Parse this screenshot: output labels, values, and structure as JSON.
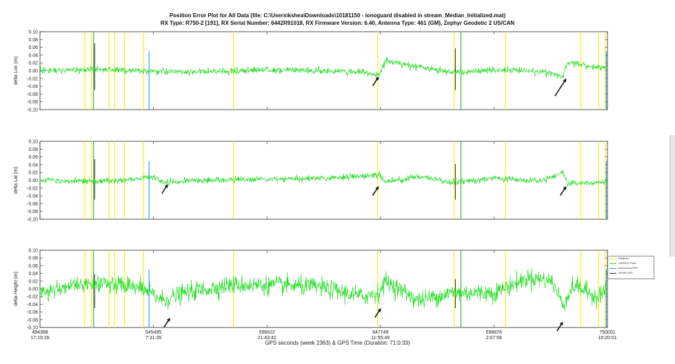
{
  "figure": {
    "title_line1": "Position Error Plot for All Data (file: C:\\Users\\kshea\\Downloads\\10181150 - ionoguard disabled in stream_Median_Initialized.mat)",
    "title_line2": "RX Type: R750-2 [191], RX Serial Number: 6442R91018, RX Firmware Version: 6.40, Antenna Type: 461 (GM), Zephyr Geodetic 2 US/CAN",
    "xlabel": "GPS seconds (week 2363) & GPS Time (Duration: 71:0:33)"
  },
  "legend": {
    "entries": [
      {
        "label": "Initialized",
        "color": "#e8e800"
      },
      {
        "label": "CMR/RTK Fixed",
        "color": "#22cc22"
      },
      {
        "label": "Autonomous/SPS",
        "color": "#1e90ff"
      },
      {
        "label": "DGNSS (SP)",
        "color": "#333333"
      }
    ]
  },
  "chart_data": [
    {
      "type": "line",
      "ylabel": "delta Lon (m)",
      "ylim": [
        -0.1,
        0.1
      ],
      "yticks": [
        "0.10",
        "0.08",
        "0.06",
        "0.04",
        "0.02",
        "0.00",
        "-0.02",
        "-0.04",
        "-0.06",
        "-0.08",
        "-0.10"
      ],
      "xlim": [
        494368,
        750001
      ],
      "xticks": [
        {
          "value": 494368,
          "gps": "494368",
          "time": "17:19:28"
        },
        {
          "value": 545495,
          "gps": "545495",
          "time": "7:31:35"
        },
        {
          "value": 596622,
          "gps": "596622",
          "time": "21:43:42"
        },
        {
          "value": 647749,
          "gps": "647749",
          "time": "11:55:49"
        },
        {
          "value": 698876,
          "gps": "698876",
          "time": "2:07:56"
        },
        {
          "value": 750001,
          "gps": "750001",
          "time": "16:20:01"
        }
      ],
      "series": [
        {
          "color": "#22dd22",
          "noise": 0.004,
          "x": [
            494368,
            520000,
            545495,
            570000,
            596622,
            620000,
            640000,
            647000,
            650000,
            665000,
            680000,
            698876,
            720000,
            730000,
            732000,
            745000,
            750001
          ],
          "y": [
            0.0,
            0.003,
            -0.002,
            -0.004,
            0.002,
            0.0,
            -0.003,
            -0.012,
            0.025,
            0.01,
            -0.005,
            0.002,
            -0.002,
            -0.015,
            0.022,
            0.008,
            0.01
          ]
        }
      ],
      "annotations": [
        {
          "label": "arrow",
          "x": 647000,
          "y": -0.015
        },
        {
          "label": "arrow",
          "x": 731500,
          "y": -0.02
        }
      ]
    },
    {
      "type": "line",
      "ylabel": "delta Lat (m)",
      "ylim": [
        -0.1,
        0.1
      ],
      "yticks": [
        "0.10",
        "0.08",
        "0.06",
        "0.04",
        "0.02",
        "0.00",
        "-0.02",
        "-0.04",
        "-0.06",
        "-0.08",
        "-0.10"
      ],
      "xlim": [
        494368,
        750001
      ],
      "xticks": [
        {
          "value": 494368,
          "gps": "494368",
          "time": "17:19:28"
        },
        {
          "value": 545495,
          "gps": "545495",
          "time": "7:31:35"
        },
        {
          "value": 596622,
          "gps": "596622",
          "time": "21:43:42"
        },
        {
          "value": 647749,
          "gps": "647749",
          "time": "11:55:49"
        },
        {
          "value": 698876,
          "gps": "698876",
          "time": "2:07:56"
        },
        {
          "value": 750001,
          "gps": "750001",
          "time": "16:20:01"
        }
      ],
      "series": [
        {
          "color": "#22dd22",
          "noise": 0.004,
          "x": [
            494368,
            520000,
            540000,
            545495,
            550000,
            570000,
            596622,
            620000,
            640000,
            647000,
            650000,
            665000,
            680000,
            698876,
            720000,
            730000,
            732000,
            745000,
            750001
          ],
          "y": [
            0.0,
            -0.003,
            0.005,
            0.01,
            -0.005,
            0.0,
            0.003,
            0.005,
            0.01,
            0.015,
            -0.005,
            0.01,
            -0.005,
            0.005,
            0.0,
            0.02,
            -0.008,
            -0.005,
            -0.003
          ]
        }
      ],
      "annotations": [
        {
          "label": "arrow",
          "x": 552000,
          "y": -0.01
        },
        {
          "label": "arrow",
          "x": 647000,
          "y": -0.015
        },
        {
          "label": "arrow",
          "x": 731500,
          "y": -0.015
        }
      ]
    },
    {
      "type": "line",
      "ylabel": "delta Height (m)",
      "ylim": [
        -0.1,
        0.1
      ],
      "yticks": [
        "0.10",
        "0.08",
        "0.06",
        "0.04",
        "0.02",
        "0.00",
        "-0.02",
        "-0.04",
        "-0.06",
        "-0.08",
        "-0.10"
      ],
      "xlim": [
        494368,
        750001
      ],
      "xticks": [
        {
          "value": 494368,
          "gps": "494368",
          "time": "17:19:28"
        },
        {
          "value": 545495,
          "gps": "545495",
          "time": "7:31:35"
        },
        {
          "value": 596622,
          "gps": "596622",
          "time": "21:43:42"
        },
        {
          "value": 647749,
          "gps": "647749",
          "time": "11:55:49"
        },
        {
          "value": 698876,
          "gps": "698876",
          "time": "2:07:56"
        },
        {
          "value": 750001,
          "gps": "750001",
          "time": "16:20:01"
        }
      ],
      "series": [
        {
          "color": "#22dd22",
          "noise": 0.012,
          "x": [
            494368,
            510000,
            525000,
            540000,
            550000,
            560000,
            580000,
            600000,
            620000,
            640000,
            647000,
            650000,
            665000,
            680000,
            698876,
            715000,
            725000,
            730000,
            735000,
            745000,
            750001
          ],
          "y": [
            -0.01,
            0.01,
            0.015,
            0.0,
            -0.03,
            -0.01,
            0.01,
            0.01,
            0.005,
            -0.02,
            -0.01,
            0.02,
            -0.03,
            -0.01,
            -0.01,
            0.03,
            0.02,
            -0.04,
            0.01,
            -0.02,
            0.0
          ]
        }
      ],
      "annotations": [
        {
          "label": "arrow",
          "x": 553000,
          "y": -0.075
        },
        {
          "label": "arrow",
          "x": 648000,
          "y": -0.05
        },
        {
          "label": "arrow",
          "x": 730000,
          "y": -0.085
        }
      ]
    }
  ],
  "events": {
    "yellow": [
      514500,
      517500,
      525500,
      528000,
      532500,
      541000,
      581500,
      646500,
      681000,
      704000,
      738000,
      746000,
      749000
    ],
    "green": [
      518500,
      684000
    ],
    "blue": [
      543500,
      749500
    ],
    "dark": [
      519000,
      681500
    ]
  }
}
